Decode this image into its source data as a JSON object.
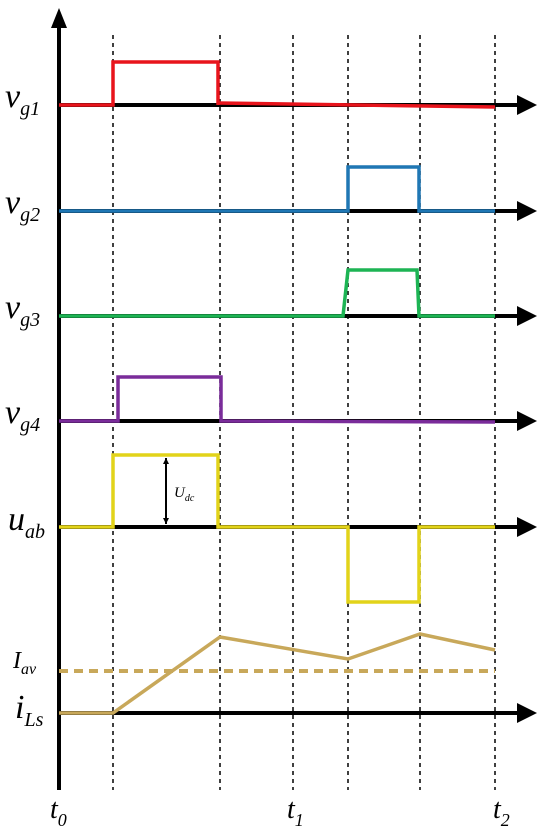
{
  "signals": [
    {
      "id": "vg1",
      "main": "v",
      "sub": "g1",
      "color": "#e8141c"
    },
    {
      "id": "vg2",
      "main": "v",
      "sub": "g2",
      "color": "#1f77b4"
    },
    {
      "id": "vg3",
      "main": "v",
      "sub": "g3",
      "color": "#1db454"
    },
    {
      "id": "vg4",
      "main": "v",
      "sub": "g4",
      "color": "#7a2c9a"
    },
    {
      "id": "uab",
      "main": "u",
      "sub": "ab",
      "color": "#e2d31a"
    },
    {
      "id": "iLs",
      "main": "i",
      "sub": "Ls",
      "color": "#c8a85a"
    }
  ],
  "annotations": {
    "udc": {
      "main": "U",
      "sub": "dc"
    },
    "iav": {
      "main": "I",
      "sub": "av",
      "color": "#c8a85a"
    }
  },
  "time_labels": [
    {
      "main": "t",
      "sub": "0"
    },
    {
      "main": "t",
      "sub": "1"
    },
    {
      "main": "t",
      "sub": "2"
    }
  ],
  "colors": {
    "axis": "#000000"
  }
}
